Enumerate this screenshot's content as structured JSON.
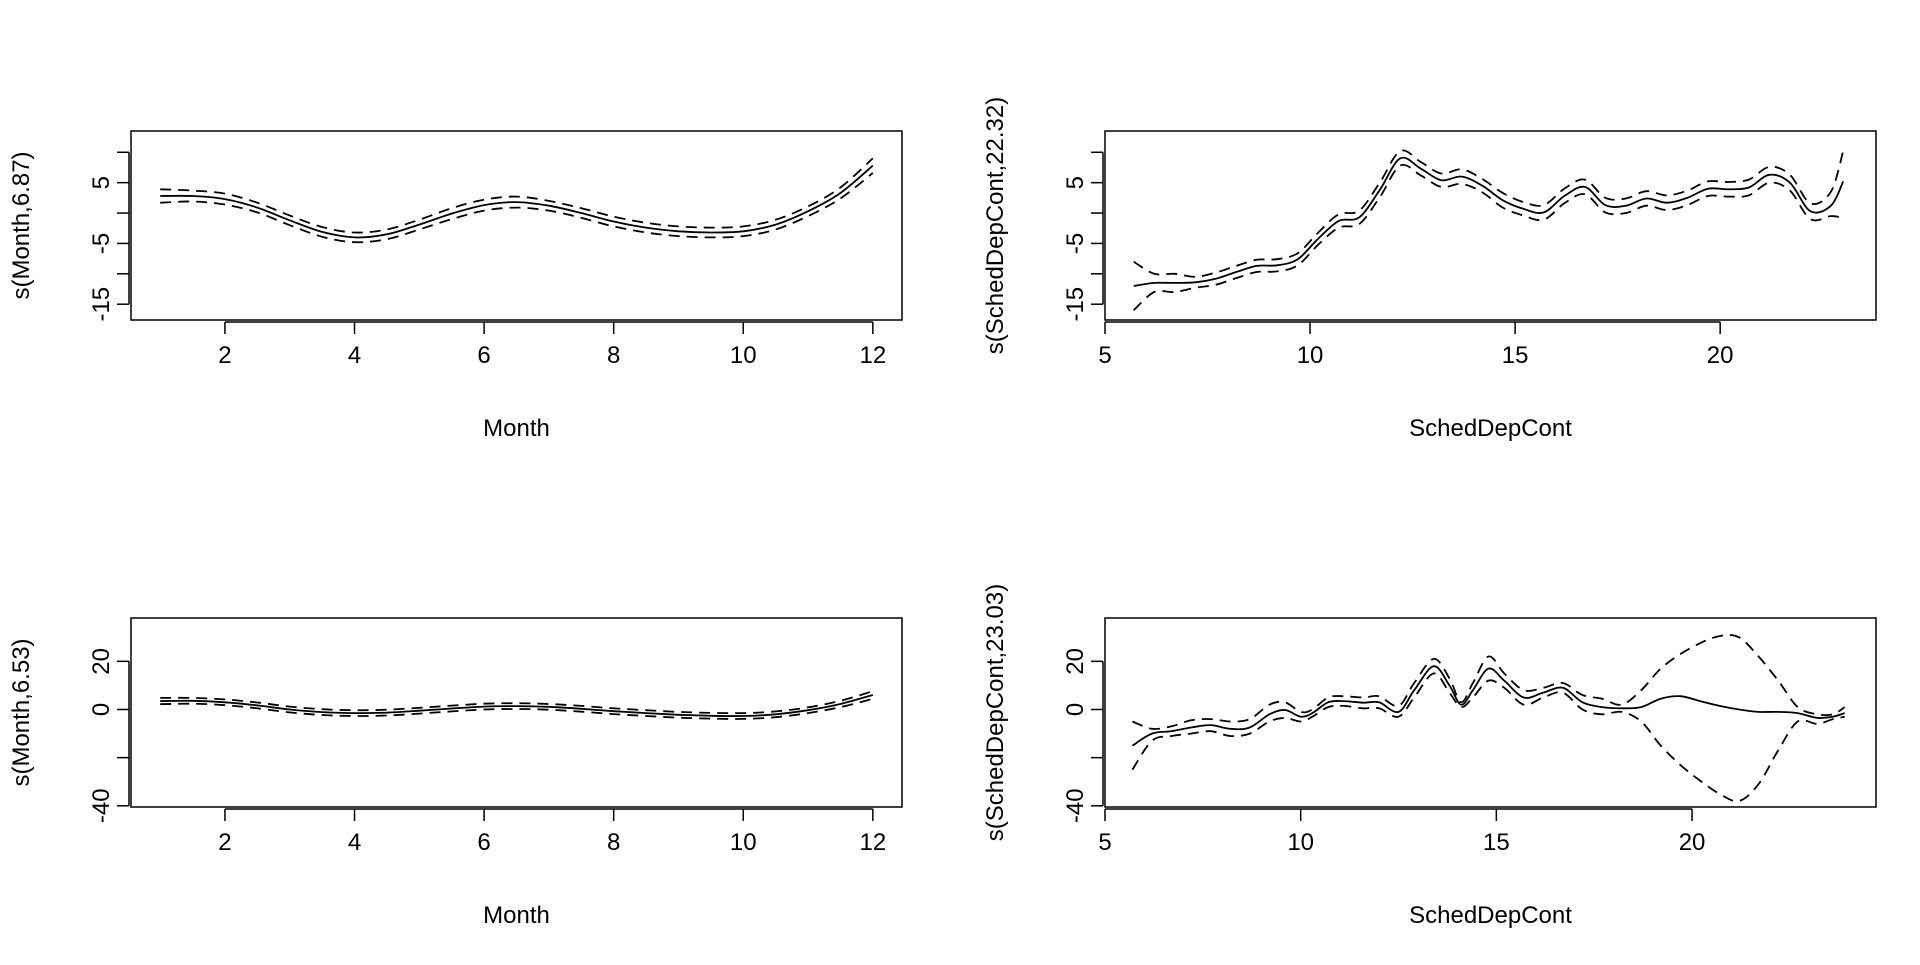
{
  "chart_data": [
    {
      "type": "line",
      "xlabel": "Month",
      "ylabel": "s(Month,6.87)",
      "xlim": [
        0.55,
        12.45
      ],
      "ylim": [
        -17.6,
        13.5
      ],
      "xticks": [
        2,
        4,
        6,
        8,
        10,
        12
      ],
      "xtick_labels": [
        "2",
        "4",
        "6",
        "8",
        "10",
        "12"
      ],
      "yticks": [
        -15,
        -10,
        -5,
        0,
        5,
        10
      ],
      "ytick_labels": [
        "-15",
        "",
        "-5",
        "",
        "5",
        ""
      ],
      "x": [
        1,
        1.5,
        2,
        2.5,
        3,
        3.5,
        4,
        4.5,
        5,
        5.5,
        6,
        6.5,
        7,
        7.5,
        8,
        8.5,
        9,
        9.5,
        10,
        10.5,
        11,
        11.5,
        12
      ],
      "series": [
        {
          "role": "fit",
          "values": [
            2.8,
            2.8,
            2.3,
            0.9,
            -1.2,
            -3.1,
            -4.0,
            -3.5,
            -1.9,
            -0.1,
            1.3,
            1.8,
            1.2,
            0.0,
            -1.4,
            -2.4,
            -3.0,
            -3.2,
            -3.0,
            -1.9,
            0.3,
            3.3,
            7.8
          ]
        },
        {
          "role": "upper",
          "values": [
            3.9,
            3.7,
            3.2,
            1.7,
            -0.4,
            -2.3,
            -3.2,
            -2.7,
            -1.1,
            0.8,
            2.2,
            2.7,
            2.0,
            0.8,
            -0.6,
            -1.6,
            -2.2,
            -2.4,
            -2.2,
            -1.1,
            1.1,
            4.2,
            9.0
          ]
        },
        {
          "role": "lower",
          "values": [
            1.7,
            1.9,
            1.4,
            0.1,
            -2.0,
            -3.9,
            -4.8,
            -4.3,
            -2.7,
            -1.0,
            0.4,
            0.9,
            0.4,
            -0.8,
            -2.2,
            -3.2,
            -3.8,
            -4.0,
            -3.8,
            -2.7,
            -0.5,
            2.4,
            6.6
          ]
        }
      ]
    },
    {
      "type": "line",
      "xlabel": "SchedDepCont",
      "ylabel": "s(SchedDepCont,22.32)",
      "xlim": [
        5.0,
        23.8
      ],
      "ylim": [
        -17.6,
        13.5
      ],
      "xticks": [
        5,
        10,
        15,
        20
      ],
      "xtick_labels": [
        "5",
        "10",
        "15",
        "20"
      ],
      "yticks": [
        -15,
        -10,
        -5,
        0,
        5,
        10
      ],
      "ytick_labels": [
        "-15",
        "",
        "-5",
        "",
        "5",
        ""
      ],
      "x": [
        5.7,
        6.2,
        6.7,
        7.2,
        7.7,
        8.2,
        8.7,
        9.2,
        9.7,
        10.2,
        10.7,
        11.2,
        11.7,
        12.2,
        12.7,
        13.2,
        13.7,
        14.2,
        14.7,
        15.2,
        15.7,
        16.2,
        16.7,
        17.2,
        17.7,
        18.2,
        18.7,
        19.2,
        19.7,
        20.2,
        20.7,
        21.2,
        21.7,
        22.2,
        22.7,
        23.0
      ],
      "series": [
        {
          "role": "fit",
          "values": [
            -12.0,
            -11.5,
            -11.5,
            -11.4,
            -10.8,
            -9.7,
            -8.7,
            -8.6,
            -7.6,
            -4.2,
            -1.3,
            -0.7,
            3.8,
            9.0,
            7.3,
            5.4,
            6.0,
            4.5,
            2.1,
            0.7,
            0.1,
            2.8,
            4.3,
            1.3,
            1.2,
            2.4,
            1.7,
            2.5,
            4.0,
            3.9,
            4.2,
            6.3,
            5.0,
            0.3,
            1.2,
            5.2
          ]
        },
        {
          "role": "upper",
          "values": [
            -8.0,
            -10.0,
            -10.0,
            -10.5,
            -9.8,
            -8.7,
            -7.7,
            -7.6,
            -6.6,
            -3.2,
            -0.2,
            0.4,
            5.0,
            10.2,
            8.4,
            6.5,
            7.2,
            5.6,
            3.3,
            1.8,
            1.3,
            4.0,
            5.5,
            2.5,
            2.4,
            3.6,
            2.9,
            3.7,
            5.2,
            5.1,
            5.5,
            7.6,
            6.3,
            1.6,
            3.5,
            10.2
          ]
        },
        {
          "role": "lower",
          "values": [
            -16.0,
            -13.0,
            -13.0,
            -12.3,
            -11.8,
            -10.7,
            -9.7,
            -9.6,
            -8.6,
            -5.2,
            -2.4,
            -1.8,
            2.6,
            7.8,
            6.2,
            4.3,
            4.8,
            3.4,
            0.9,
            -0.4,
            -1.1,
            1.6,
            3.1,
            0.1,
            0.0,
            1.2,
            0.5,
            1.3,
            2.8,
            2.7,
            2.9,
            5.0,
            3.7,
            -1.0,
            -0.5,
            -0.8
          ]
        }
      ]
    },
    {
      "type": "line",
      "xlabel": "Month",
      "ylabel": "s(Month,6.53)",
      "xlim": [
        0.55,
        12.45
      ],
      "ylim": [
        -40.5,
        38.0
      ],
      "xticks": [
        2,
        4,
        6,
        8,
        10,
        12
      ],
      "xtick_labels": [
        "2",
        "4",
        "6",
        "8",
        "10",
        "12"
      ],
      "yticks": [
        -40,
        -20,
        0,
        20
      ],
      "ytick_labels": [
        "-40",
        "",
        "0",
        "20"
      ],
      "x": [
        1,
        1.5,
        2,
        2.5,
        3,
        3.5,
        4,
        4.5,
        5,
        5.5,
        6,
        6.5,
        7,
        7.5,
        8,
        8.5,
        9,
        9.5,
        10,
        10.5,
        11,
        11.5,
        12
      ],
      "series": [
        {
          "role": "fit",
          "values": [
            3.5,
            3.6,
            3.0,
            1.7,
            0.0,
            -1.1,
            -1.5,
            -1.3,
            -0.5,
            0.4,
            1.2,
            1.4,
            1.1,
            0.3,
            -0.7,
            -1.5,
            -2.2,
            -2.6,
            -2.7,
            -2.0,
            -0.3,
            2.3,
            6.0
          ]
        },
        {
          "role": "upper",
          "values": [
            4.8,
            4.8,
            4.2,
            2.9,
            1.2,
            0.1,
            -0.3,
            -0.1,
            0.7,
            1.6,
            2.4,
            2.6,
            2.3,
            1.5,
            0.5,
            -0.3,
            -1.0,
            -1.4,
            -1.5,
            -0.8,
            0.9,
            3.6,
            7.6
          ]
        },
        {
          "role": "lower",
          "values": [
            2.2,
            2.4,
            1.8,
            0.5,
            -1.2,
            -2.3,
            -2.7,
            -2.5,
            -1.7,
            -0.8,
            0.0,
            0.2,
            -0.1,
            -0.9,
            -1.9,
            -2.7,
            -3.4,
            -3.8,
            -3.9,
            -3.2,
            -1.5,
            1.0,
            4.4
          ]
        }
      ]
    },
    {
      "type": "line",
      "xlabel": "SchedDepCont",
      "ylabel": "s(SchedDepCont,23.03)",
      "xlim": [
        5.0,
        24.7
      ],
      "ylim": [
        -40.5,
        38.0
      ],
      "xticks": [
        5,
        10,
        15,
        20
      ],
      "xtick_labels": [
        "5",
        "10",
        "15",
        "20"
      ],
      "yticks": [
        -40,
        -20,
        0,
        20
      ],
      "ytick_labels": [
        "-40",
        "",
        "0",
        "20"
      ],
      "x": [
        5.7,
        6.2,
        6.7,
        7.2,
        7.7,
        8.2,
        8.7,
        9.2,
        9.6,
        10.0,
        10.3,
        10.7,
        11.1,
        11.6,
        12.0,
        12.5,
        12.9,
        13.4,
        13.8,
        14.1,
        14.4,
        14.8,
        15.2,
        15.7,
        16.2,
        16.7,
        17.2,
        17.7,
        18.2,
        18.7,
        19.2,
        19.7,
        20.2,
        20.7,
        21.2,
        21.7,
        22.2,
        22.7,
        23.2,
        23.6,
        23.9
      ],
      "series": [
        {
          "role": "fit",
          "values": [
            -15.0,
            -10.0,
            -9.0,
            -7.5,
            -6.5,
            -8.0,
            -7.5,
            -2.0,
            -0.2,
            -3.0,
            -1.5,
            3.0,
            3.5,
            2.8,
            3.0,
            -1.0,
            8.0,
            18.0,
            10.0,
            2.0,
            8.0,
            17.0,
            12.0,
            5.0,
            7.0,
            9.0,
            3.0,
            1.0,
            0.5,
            1.0,
            4.5,
            5.5,
            3.5,
            1.5,
            0.0,
            -1.0,
            -1.0,
            -1.5,
            -3.5,
            -3.0,
            -1.5
          ]
        },
        {
          "role": "upper",
          "values": [
            -5.0,
            -8.0,
            -7.0,
            -4.5,
            -4.0,
            -5.0,
            -4.0,
            2.0,
            3.0,
            -1.0,
            0.0,
            5.0,
            5.5,
            5.0,
            5.5,
            1.5,
            11.0,
            21.0,
            13.0,
            3.0,
            11.0,
            22.0,
            15.0,
            8.0,
            9.0,
            11.0,
            6.0,
            4.5,
            2.0,
            8.0,
            17.0,
            23.0,
            27.5,
            30.5,
            30.0,
            22.0,
            12.0,
            1.0,
            -2.0,
            -2.0,
            1.0
          ]
        },
        {
          "role": "lower",
          "values": [
            -25.0,
            -13.0,
            -11.0,
            -10.0,
            -9.0,
            -11.0,
            -10.0,
            -5.0,
            -3.5,
            -5.0,
            -3.0,
            1.0,
            1.5,
            0.5,
            0.5,
            -3.0,
            5.0,
            15.0,
            7.0,
            1.0,
            5.0,
            12.0,
            9.0,
            2.0,
            5.0,
            7.0,
            0.0,
            -2.0,
            -1.0,
            -5.0,
            -15.0,
            -23.0,
            -29.5,
            -35.0,
            -38.0,
            -31.0,
            -17.0,
            -5.0,
            -6.0,
            -4.0,
            -3.0
          ]
        }
      ]
    }
  ]
}
